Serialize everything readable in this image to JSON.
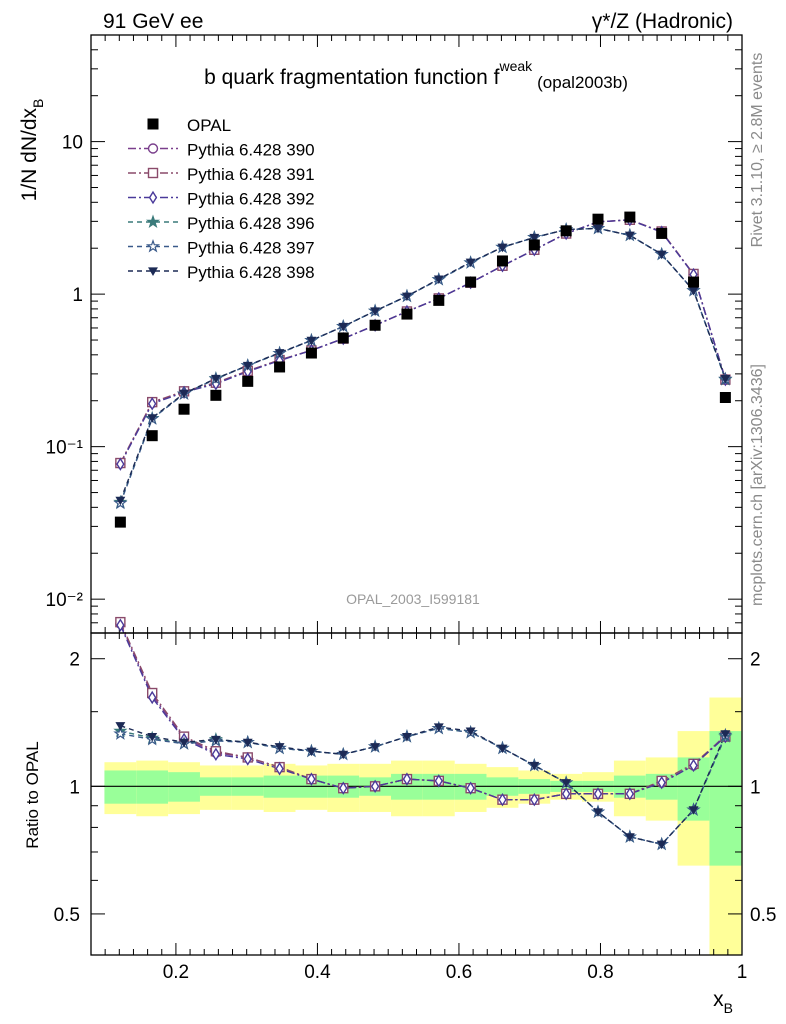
{
  "header": {
    "left": "91 GeV ee",
    "right": "γ*/Z (Hadronic)"
  },
  "side_text": {
    "rivet": "Rivet 3.1.10, ≥ 2.8M events",
    "mcplots": "mcplots.cern.ch [arXiv:1306.3436]"
  },
  "chart_data": {
    "type": "line",
    "title": "b quark fragmentation function f",
    "title_sup": "weak",
    "title_suffix": "(opal2003b)",
    "watermark": "OPAL_2003_I599181",
    "xlabel": "x",
    "xlabel_sub": "B",
    "ylabel": "1/N dN/dx",
    "ylabel_sub": "B",
    "ratio_ylabel": "Ratio to OPAL",
    "xlim": [
      0.08,
      1.0
    ],
    "ylim": [
      0.006,
      50
    ],
    "yscale": "log",
    "ratio_ylim": [
      0.4,
      2.3
    ],
    "x_ticks": [
      "0.2",
      "0.4",
      "0.6",
      "0.8",
      "1"
    ],
    "y_ticks": [
      "10⁻²",
      "10⁻¹",
      "1",
      "10"
    ],
    "ratio_ticks": [
      "0.5",
      "1",
      "2"
    ],
    "legend_position": "top-left",
    "x": [
      0.1215,
      0.1665,
      0.2115,
      0.2565,
      0.3015,
      0.3465,
      0.3915,
      0.4365,
      0.4815,
      0.5265,
      0.5715,
      0.6165,
      0.6615,
      0.7065,
      0.7515,
      0.7965,
      0.8415,
      0.8865,
      0.9315,
      0.9765
    ],
    "data": {
      "name": "OPAL",
      "values": [
        0.032,
        0.118,
        0.176,
        0.217,
        0.268,
        0.333,
        0.411,
        0.516,
        0.625,
        0.74,
        0.91,
        1.2,
        1.65,
        2.1,
        2.6,
        3.1,
        3.2,
        2.5,
        1.2,
        0.21
      ],
      "band_inner": [
        0.09,
        0.09,
        0.08,
        0.05,
        0.05,
        0.06,
        0.06,
        0.06,
        0.05,
        0.07,
        0.07,
        0.07,
        0.05,
        0.04,
        0.03,
        0.03,
        0.06,
        0.07,
        0.17,
        0.35
      ],
      "band_outer": [
        0.14,
        0.15,
        0.14,
        0.12,
        0.12,
        0.13,
        0.12,
        0.13,
        0.13,
        0.15,
        0.15,
        0.13,
        0.11,
        0.09,
        0.07,
        0.08,
        0.15,
        0.17,
        0.35,
        0.62
      ]
    },
    "series": [
      {
        "name": "Pythia 6.428 390",
        "color": "#7a3f8c",
        "marker": "circle-open",
        "dash": "8 3 2 3",
        "ratio": [
          2.42,
          1.64,
          1.3,
          1.2,
          1.17,
          1.11,
          1.04,
          0.99,
          1.0,
          1.04,
          1.03,
          0.99,
          0.93,
          0.93,
          0.96,
          0.96,
          0.96,
          1.02,
          1.12,
          1.32
        ]
      },
      {
        "name": "Pythia 6.428 391",
        "color": "#8a4a6a",
        "marker": "square-open",
        "dash": "8 3 2 3",
        "ratio": [
          2.44,
          1.66,
          1.31,
          1.21,
          1.17,
          1.11,
          1.04,
          0.99,
          1.0,
          1.04,
          1.03,
          0.99,
          0.93,
          0.93,
          0.96,
          0.96,
          0.96,
          1.03,
          1.13,
          1.31
        ]
      },
      {
        "name": "Pythia 6.428 392",
        "color": "#4a3a9a",
        "marker": "diamond-open",
        "dash": "8 3 2 3",
        "ratio": [
          2.4,
          1.62,
          1.29,
          1.19,
          1.16,
          1.1,
          1.04,
          0.99,
          1.0,
          1.04,
          1.03,
          0.99,
          0.93,
          0.93,
          0.96,
          0.96,
          0.96,
          1.02,
          1.12,
          1.31
        ]
      },
      {
        "name": "Pythia 6.428 396",
        "color": "#3a7a7a",
        "marker": "star-filled",
        "dash": "5 4",
        "ratio": [
          1.35,
          1.3,
          1.26,
          1.29,
          1.27,
          1.23,
          1.21,
          1.19,
          1.24,
          1.31,
          1.37,
          1.34,
          1.23,
          1.12,
          1.02,
          0.87,
          0.76,
          0.73,
          0.88,
          1.31
        ]
      },
      {
        "name": "Pythia 6.428 397",
        "color": "#3a5a8a",
        "marker": "star-open",
        "dash": "5 4",
        "ratio": [
          1.33,
          1.29,
          1.26,
          1.28,
          1.27,
          1.23,
          1.21,
          1.19,
          1.24,
          1.31,
          1.37,
          1.34,
          1.23,
          1.12,
          1.02,
          0.87,
          0.76,
          0.73,
          0.88,
          1.32
        ]
      },
      {
        "name": "Pythia 6.428 398",
        "color": "#1c2a55",
        "marker": "triangle-down-filled",
        "dash": "5 4",
        "ratio": [
          1.39,
          1.31,
          1.27,
          1.29,
          1.27,
          1.24,
          1.21,
          1.19,
          1.24,
          1.31,
          1.38,
          1.35,
          1.23,
          1.12,
          1.02,
          0.87,
          0.76,
          0.73,
          0.88,
          1.33
        ]
      }
    ]
  }
}
